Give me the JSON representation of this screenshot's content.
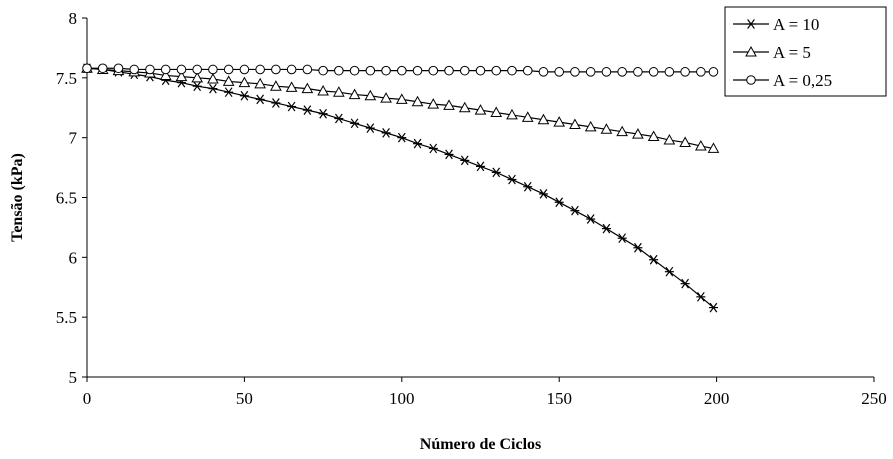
{
  "chart_data": {
    "type": "line",
    "title": "",
    "xlabel": "Número de Ciclos",
    "ylabel": "Tensão (kPa)",
    "xlim": [
      0,
      250
    ],
    "ylim": [
      5,
      8
    ],
    "xticks": [
      0,
      50,
      100,
      150,
      200,
      250
    ],
    "yticks": [
      5,
      5.5,
      6,
      6.5,
      7,
      7.5,
      8
    ],
    "xtick_labels": [
      "0",
      "50",
      "100",
      "150",
      "200",
      "250"
    ],
    "ytick_labels": [
      "5",
      "5.5",
      "6",
      "6.5",
      "7",
      "7.5",
      "8"
    ],
    "grid": false,
    "legend_position": "top-right",
    "series": [
      {
        "name": "A = 10",
        "marker": "star",
        "x": [
          0,
          5,
          10,
          15,
          20,
          25,
          30,
          35,
          40,
          45,
          50,
          55,
          60,
          65,
          70,
          75,
          80,
          85,
          90,
          95,
          100,
          105,
          110,
          115,
          120,
          125,
          130,
          135,
          140,
          145,
          150,
          155,
          160,
          165,
          170,
          175,
          180,
          185,
          190,
          195,
          199
        ],
        "y": [
          7.58,
          7.57,
          7.55,
          7.53,
          7.51,
          7.48,
          7.46,
          7.43,
          7.41,
          7.38,
          7.35,
          7.32,
          7.29,
          7.26,
          7.23,
          7.2,
          7.16,
          7.12,
          7.08,
          7.04,
          7.0,
          6.95,
          6.91,
          6.86,
          6.81,
          6.76,
          6.71,
          6.65,
          6.59,
          6.53,
          6.46,
          6.39,
          6.32,
          6.24,
          6.16,
          6.08,
          5.98,
          5.88,
          5.78,
          5.67,
          5.58
        ]
      },
      {
        "name": "A = 5",
        "marker": "triangle",
        "x": [
          0,
          5,
          10,
          15,
          20,
          25,
          30,
          35,
          40,
          45,
          50,
          55,
          60,
          65,
          70,
          75,
          80,
          85,
          90,
          95,
          100,
          105,
          110,
          115,
          120,
          125,
          130,
          135,
          140,
          145,
          150,
          155,
          160,
          165,
          170,
          175,
          180,
          185,
          190,
          195,
          199
        ],
        "y": [
          7.58,
          7.57,
          7.56,
          7.55,
          7.54,
          7.52,
          7.51,
          7.5,
          7.49,
          7.47,
          7.46,
          7.45,
          7.43,
          7.42,
          7.41,
          7.39,
          7.38,
          7.36,
          7.35,
          7.33,
          7.32,
          7.3,
          7.28,
          7.27,
          7.25,
          7.23,
          7.21,
          7.19,
          7.17,
          7.15,
          7.13,
          7.11,
          7.09,
          7.07,
          7.05,
          7.03,
          7.01,
          6.98,
          6.96,
          6.93,
          6.91
        ]
      },
      {
        "name": "A = 0,25",
        "marker": "circle",
        "x": [
          0,
          5,
          10,
          15,
          20,
          25,
          30,
          35,
          40,
          45,
          50,
          55,
          60,
          65,
          70,
          75,
          80,
          85,
          90,
          95,
          100,
          105,
          110,
          115,
          120,
          125,
          130,
          135,
          140,
          145,
          150,
          155,
          160,
          165,
          170,
          175,
          180,
          185,
          190,
          195,
          199
        ],
        "y": [
          7.58,
          7.58,
          7.58,
          7.57,
          7.57,
          7.57,
          7.57,
          7.57,
          7.57,
          7.57,
          7.57,
          7.57,
          7.57,
          7.57,
          7.57,
          7.56,
          7.56,
          7.56,
          7.56,
          7.56,
          7.56,
          7.56,
          7.56,
          7.56,
          7.56,
          7.56,
          7.56,
          7.56,
          7.56,
          7.55,
          7.55,
          7.55,
          7.55,
          7.55,
          7.55,
          7.55,
          7.55,
          7.55,
          7.55,
          7.55,
          7.55
        ]
      }
    ]
  }
}
